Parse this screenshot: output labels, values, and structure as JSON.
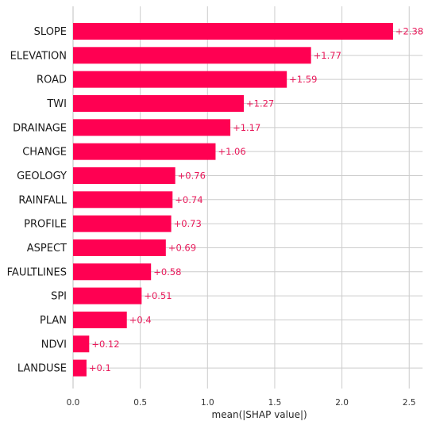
{
  "chart_data": {
    "type": "bar",
    "orientation": "horizontal",
    "categories": [
      "SLOPE",
      "ELEVATION",
      "ROAD",
      "TWI",
      "DRAINAGE",
      "CHANGE",
      "GEOLOGY",
      "RAINFALL",
      "PROFILE",
      "ASPECT",
      "FAULTLINES",
      "SPI",
      "PLAN",
      "NDVI",
      "LANDUSE"
    ],
    "values": [
      2.38,
      1.77,
      1.59,
      1.27,
      1.17,
      1.06,
      0.76,
      0.74,
      0.73,
      0.69,
      0.58,
      0.51,
      0.4,
      0.12,
      0.1
    ],
    "value_labels": [
      "+2.38",
      "+1.77",
      "+1.59",
      "+1.27",
      "+1.17",
      "+1.06",
      "+0.76",
      "+0.74",
      "+0.73",
      "+0.69",
      "+0.58",
      "+0.51",
      "+0.4",
      "+0.12",
      "+0.1"
    ],
    "xlabel": "mean(|SHAP value|)",
    "xticks": [
      0.0,
      0.5,
      1.0,
      1.5,
      2.0,
      2.5
    ],
    "xtick_labels": [
      "0.0",
      "0.5",
      "1.0",
      "1.5",
      "2.0",
      "2.5"
    ],
    "xlim": [
      0,
      2.6
    ],
    "grid": true,
    "colors": {
      "bar": "#ff0052",
      "value_label": "#e8195a",
      "grid": "#cccccc",
      "axis": "#bfbfbf"
    }
  }
}
